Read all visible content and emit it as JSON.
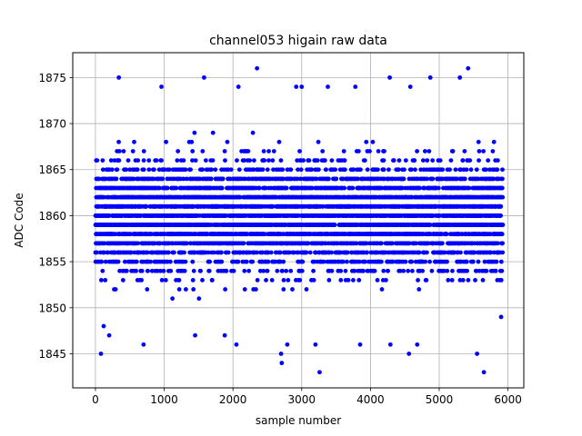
{
  "chart_data": {
    "type": "scatter",
    "title": "channel053 higain raw data",
    "xlabel": "sample number",
    "ylabel": "ADC Code",
    "xlim": [
      -330,
      6230
    ],
    "ylim": [
      1841.3,
      1877.7
    ],
    "x_ticks": [
      0,
      1000,
      2000,
      3000,
      4000,
      5000,
      6000
    ],
    "y_ticks": [
      1845,
      1850,
      1855,
      1860,
      1865,
      1870,
      1875
    ],
    "grid": true,
    "marker_color": "#0000ff",
    "n_samples": 5925,
    "core_band": [
      1854,
      1866
    ],
    "outliers": [
      {
        "x": 80,
        "y": 1845
      },
      {
        "x": 120,
        "y": 1848
      },
      {
        "x": 200,
        "y": 1847
      },
      {
        "x": 340,
        "y": 1875
      },
      {
        "x": 700,
        "y": 1846
      },
      {
        "x": 960,
        "y": 1874
      },
      {
        "x": 1450,
        "y": 1847
      },
      {
        "x": 1580,
        "y": 1875
      },
      {
        "x": 1880,
        "y": 1847
      },
      {
        "x": 2050,
        "y": 1846
      },
      {
        "x": 2080,
        "y": 1874
      },
      {
        "x": 2350,
        "y": 1876
      },
      {
        "x": 2700,
        "y": 1845
      },
      {
        "x": 2710,
        "y": 1844
      },
      {
        "x": 2790,
        "y": 1846
      },
      {
        "x": 2920,
        "y": 1874
      },
      {
        "x": 3000,
        "y": 1874
      },
      {
        "x": 3200,
        "y": 1846
      },
      {
        "x": 3260,
        "y": 1843
      },
      {
        "x": 3380,
        "y": 1874
      },
      {
        "x": 3780,
        "y": 1874
      },
      {
        "x": 3850,
        "y": 1846
      },
      {
        "x": 4280,
        "y": 1875
      },
      {
        "x": 4290,
        "y": 1846
      },
      {
        "x": 4560,
        "y": 1845
      },
      {
        "x": 4580,
        "y": 1874
      },
      {
        "x": 4680,
        "y": 1846
      },
      {
        "x": 4870,
        "y": 1875
      },
      {
        "x": 5300,
        "y": 1875
      },
      {
        "x": 5420,
        "y": 1876
      },
      {
        "x": 5550,
        "y": 1845
      },
      {
        "x": 5650,
        "y": 1843
      },
      {
        "x": 5900,
        "y": 1849
      }
    ]
  }
}
